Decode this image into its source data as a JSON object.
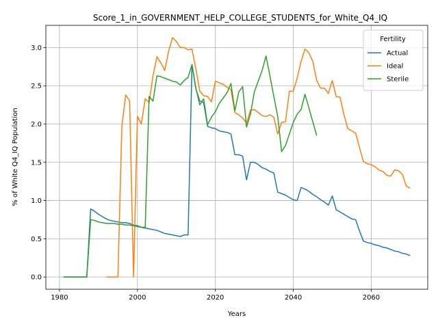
{
  "chart_data": {
    "type": "line",
    "title": "Score_1_in_GOVERNMENT_HELP_COLLEGE_STUDENTS_for_White_Q4_IQ",
    "xlabel": "Years",
    "ylabel": "% of White Q4_IQ Population",
    "xlim": [
      1976.5,
      2074.5
    ],
    "ylim": [
      -0.16,
      3.29
    ],
    "xticks": [
      1980,
      2000,
      2020,
      2040,
      2060
    ],
    "yticks": [
      0.0,
      0.5,
      1.0,
      1.5,
      2.0,
      2.5,
      3.0
    ],
    "grid": true,
    "legend": {
      "title": "Fertility",
      "placement": "top-right"
    },
    "series": [
      {
        "name": "Actual",
        "color": "#1f77b4",
        "points": [
          [
            1981,
            0.0
          ],
          [
            1985,
            0.0
          ],
          [
            1987,
            0.0
          ],
          [
            1988,
            0.89
          ],
          [
            1989,
            0.86
          ],
          [
            1990,
            0.82
          ],
          [
            1991,
            0.79
          ],
          [
            1992,
            0.76
          ],
          [
            1993,
            0.74
          ],
          [
            1994,
            0.73
          ],
          [
            1995,
            0.72
          ],
          [
            1996,
            0.71
          ],
          [
            1997,
            0.71
          ],
          [
            1998,
            0.7
          ],
          [
            1999,
            0.68
          ],
          [
            2000,
            0.67
          ],
          [
            2001,
            0.65
          ],
          [
            2002,
            0.64
          ],
          [
            2003,
            0.63
          ],
          [
            2004,
            0.62
          ],
          [
            2005,
            0.61
          ],
          [
            2006,
            0.59
          ],
          [
            2007,
            0.57
          ],
          [
            2008,
            0.56
          ],
          [
            2009,
            0.55
          ],
          [
            2010,
            0.54
          ],
          [
            2011,
            0.53
          ],
          [
            2012,
            0.55
          ],
          [
            2013,
            0.55
          ],
          [
            2014,
            2.77
          ],
          [
            2015,
            2.46
          ],
          [
            2016,
            2.3
          ],
          [
            2017,
            2.28
          ],
          [
            2018,
            1.97
          ],
          [
            2019,
            1.95
          ],
          [
            2020,
            1.94
          ],
          [
            2021,
            1.91
          ],
          [
            2022,
            1.9
          ],
          [
            2023,
            1.89
          ],
          [
            2024,
            1.87
          ],
          [
            2025,
            1.6
          ],
          [
            2026,
            1.6
          ],
          [
            2027,
            1.58
          ],
          [
            2028,
            1.27
          ],
          [
            2029,
            1.5
          ],
          [
            2030,
            1.5
          ],
          [
            2031,
            1.47
          ],
          [
            2032,
            1.43
          ],
          [
            2033,
            1.41
          ],
          [
            2034,
            1.38
          ],
          [
            2035,
            1.36
          ],
          [
            2036,
            1.11
          ],
          [
            2037,
            1.09
          ],
          [
            2038,
            1.07
          ],
          [
            2039,
            1.04
          ],
          [
            2040,
            1.01
          ],
          [
            2041,
            1.0
          ],
          [
            2042,
            1.17
          ],
          [
            2043,
            1.15
          ],
          [
            2044,
            1.12
          ],
          [
            2045,
            1.08
          ],
          [
            2046,
            1.05
          ],
          [
            2047,
            1.01
          ],
          [
            2048,
            0.98
          ],
          [
            2049,
            0.94
          ],
          [
            2050,
            1.06
          ],
          [
            2051,
            0.88
          ],
          [
            2052,
            0.85
          ],
          [
            2053,
            0.82
          ],
          [
            2054,
            0.79
          ],
          [
            2055,
            0.76
          ],
          [
            2056,
            0.75
          ],
          [
            2057,
            0.6
          ],
          [
            2058,
            0.47
          ],
          [
            2059,
            0.45
          ],
          [
            2060,
            0.44
          ],
          [
            2061,
            0.42
          ],
          [
            2062,
            0.41
          ],
          [
            2063,
            0.39
          ],
          [
            2064,
            0.38
          ],
          [
            2065,
            0.36
          ],
          [
            2066,
            0.34
          ],
          [
            2067,
            0.33
          ],
          [
            2068,
            0.31
          ],
          [
            2069,
            0.3
          ],
          [
            2070,
            0.28
          ]
        ]
      },
      {
        "name": "Ideal",
        "color": "#ff7f0e",
        "points": [
          [
            1992,
            0.0
          ],
          [
            1995,
            0.0
          ],
          [
            1996,
            1.97
          ],
          [
            1997,
            2.38
          ],
          [
            1998,
            2.3
          ],
          [
            1999,
            0.0
          ],
          [
            2000,
            2.1
          ],
          [
            2001,
            2.0
          ],
          [
            2002,
            2.33
          ],
          [
            2003,
            2.28
          ],
          [
            2004,
            2.63
          ],
          [
            2005,
            2.88
          ],
          [
            2006,
            2.8
          ],
          [
            2007,
            2.7
          ],
          [
            2008,
            2.95
          ],
          [
            2009,
            3.13
          ],
          [
            2010,
            3.08
          ],
          [
            2011,
            3.0
          ],
          [
            2012,
            3.0
          ],
          [
            2013,
            2.97
          ],
          [
            2014,
            2.98
          ],
          [
            2015,
            2.72
          ],
          [
            2016,
            2.43
          ],
          [
            2017,
            2.37
          ],
          [
            2018,
            2.36
          ],
          [
            2019,
            2.29
          ],
          [
            2020,
            2.56
          ],
          [
            2021,
            2.54
          ],
          [
            2022,
            2.52
          ],
          [
            2023,
            2.48
          ],
          [
            2024,
            2.45
          ],
          [
            2025,
            2.15
          ],
          [
            2026,
            2.12
          ],
          [
            2027,
            2.08
          ],
          [
            2028,
            2.01
          ],
          [
            2029,
            2.18
          ],
          [
            2030,
            2.19
          ],
          [
            2031,
            2.15
          ],
          [
            2032,
            2.11
          ],
          [
            2033,
            2.1
          ],
          [
            2034,
            2.12
          ],
          [
            2035,
            2.09
          ],
          [
            2036,
            1.87
          ],
          [
            2037,
            2.02
          ],
          [
            2038,
            2.03
          ],
          [
            2039,
            2.43
          ],
          [
            2040,
            2.43
          ],
          [
            2041,
            2.6
          ],
          [
            2042,
            2.82
          ],
          [
            2043,
            2.98
          ],
          [
            2044,
            2.93
          ],
          [
            2045,
            2.82
          ],
          [
            2046,
            2.57
          ],
          [
            2047,
            2.47
          ],
          [
            2048,
            2.47
          ],
          [
            2049,
            2.4
          ],
          [
            2050,
            2.57
          ],
          [
            2051,
            2.36
          ],
          [
            2052,
            2.35
          ],
          [
            2053,
            2.12
          ],
          [
            2054,
            1.94
          ],
          [
            2055,
            1.91
          ],
          [
            2056,
            1.88
          ],
          [
            2057,
            1.69
          ],
          [
            2058,
            1.51
          ],
          [
            2059,
            1.48
          ],
          [
            2060,
            1.47
          ],
          [
            2061,
            1.44
          ],
          [
            2062,
            1.4
          ],
          [
            2063,
            1.38
          ],
          [
            2064,
            1.33
          ],
          [
            2065,
            1.32
          ],
          [
            2066,
            1.4
          ],
          [
            2067,
            1.39
          ],
          [
            2068,
            1.34
          ],
          [
            2069,
            1.19
          ],
          [
            2070,
            1.16
          ]
        ]
      },
      {
        "name": "Sterile",
        "color": "#2ca02c",
        "points": [
          [
            1981,
            0.0
          ],
          [
            1985,
            0.0
          ],
          [
            1987,
            0.0
          ],
          [
            1988,
            0.75
          ],
          [
            1989,
            0.74
          ],
          [
            1990,
            0.72
          ],
          [
            1991,
            0.71
          ],
          [
            1992,
            0.7
          ],
          [
            1993,
            0.7
          ],
          [
            1994,
            0.7
          ],
          [
            1995,
            0.69
          ],
          [
            1996,
            0.69
          ],
          [
            1997,
            0.68
          ],
          [
            1998,
            0.68
          ],
          [
            1999,
            0.67
          ],
          [
            2000,
            0.66
          ],
          [
            2001,
            0.65
          ],
          [
            2002,
            0.65
          ],
          [
            2003,
            2.36
          ],
          [
            2004,
            2.3
          ],
          [
            2005,
            2.63
          ],
          [
            2006,
            2.62
          ],
          [
            2007,
            2.6
          ],
          [
            2008,
            2.58
          ],
          [
            2009,
            2.56
          ],
          [
            2010,
            2.55
          ],
          [
            2011,
            2.51
          ],
          [
            2012,
            2.57
          ],
          [
            2013,
            2.61
          ],
          [
            2014,
            2.78
          ],
          [
            2015,
            2.47
          ],
          [
            2016,
            2.25
          ],
          [
            2017,
            2.33
          ],
          [
            2018,
            1.99
          ],
          [
            2019,
            2.09
          ],
          [
            2020,
            2.16
          ],
          [
            2021,
            2.27
          ],
          [
            2022,
            2.34
          ],
          [
            2023,
            2.41
          ],
          [
            2024,
            2.53
          ],
          [
            2025,
            2.17
          ],
          [
            2026,
            2.42
          ],
          [
            2027,
            2.49
          ],
          [
            2028,
            1.96
          ],
          [
            2029,
            2.13
          ],
          [
            2030,
            2.42
          ],
          [
            2031,
            2.56
          ],
          [
            2032,
            2.7
          ],
          [
            2033,
            2.89
          ],
          [
            2034,
            2.63
          ],
          [
            2035,
            2.36
          ],
          [
            2036,
            2.1
          ],
          [
            2037,
            1.64
          ],
          [
            2038,
            1.72
          ],
          [
            2039,
            1.87
          ],
          [
            2040,
            2.02
          ],
          [
            2041,
            2.13
          ],
          [
            2042,
            2.19
          ],
          [
            2043,
            2.39
          ],
          [
            2044,
            2.21
          ],
          [
            2045,
            2.03
          ],
          [
            2046,
            1.85
          ]
        ]
      }
    ]
  }
}
